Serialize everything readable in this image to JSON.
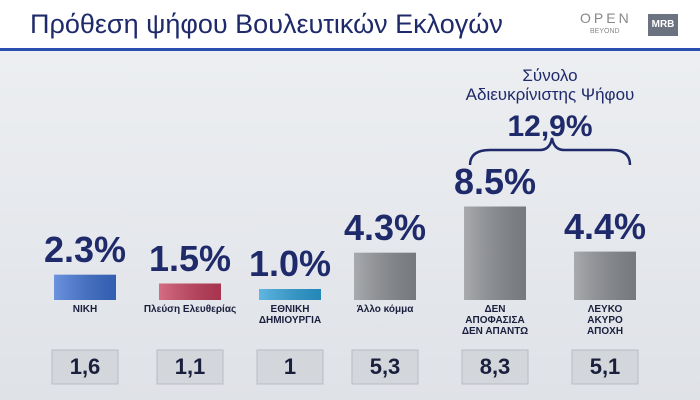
{
  "chart_data": {
    "type": "bar",
    "title": "Πρόθεση ψήφου Βουλευτικών Εκλογών",
    "brand": "OPEN",
    "brand_sub": "BEYOND",
    "pollster": "MRB",
    "categories": [
      "ΝΙΚΗ",
      "Πλεύση Ελευθερίας",
      "ΕΘΝΙΚΗ\nΔΗΜΙΟΥΡΓΙΑ",
      "Άλλο κόμμα",
      "ΔΕΝ\nΑΠΟΦΑΣΙΣΑ\nΔΕΝ ΑΠΑΝΤΩ",
      "ΛΕΥΚΟ\nΑΚΥΡΟ\nΑΠΟΧΗ"
    ],
    "values": [
      2.3,
      1.5,
      1.0,
      4.3,
      8.5,
      4.4
    ],
    "value_labels": [
      "2.3%",
      "1.5%",
      "1.0%",
      "4.3%",
      "8.5%",
      "4.4%"
    ],
    "colors": [
      "#3b6fd1",
      "#c53d5c",
      "#2b9fd8",
      "#8b8e93",
      "#8b8e93",
      "#8b8e93"
    ],
    "previous": {
      "values": [
        1.6,
        1.1,
        1,
        5.3,
        8.3,
        5.1
      ],
      "value_labels": [
        "1,6",
        "1,1",
        "1",
        "5,3",
        "8,3",
        "5,1"
      ]
    },
    "annotation": {
      "text": "Σύνολο\nΑδιευκρίνιστης Ψήφου",
      "value": 12.9,
      "value_label": "12,9%"
    }
  }
}
